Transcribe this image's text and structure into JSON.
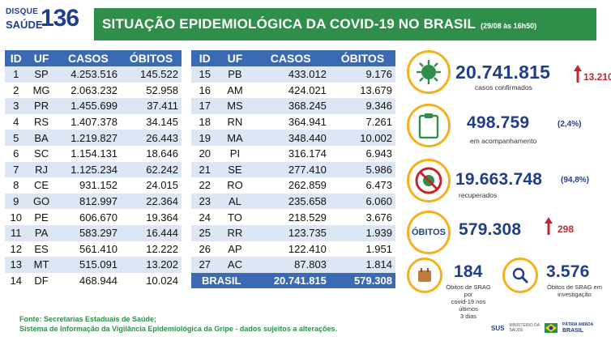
{
  "logo": {
    "line1": "DISQUE",
    "line2": "SAÚDE",
    "number": "136"
  },
  "header": {
    "title": "SITUAÇÃO EPIDEMIOLÓGICA DA COVID-19 NO BRASIL",
    "date": "(29/08 às 16h50)"
  },
  "table": {
    "columns": [
      "ID",
      "UF",
      "CASOS",
      "ÓBITOS"
    ],
    "left_rows": [
      [
        "1",
        "SP",
        "4.253.516",
        "145.522"
      ],
      [
        "2",
        "MG",
        "2.063.232",
        "52.958"
      ],
      [
        "3",
        "PR",
        "1.455.699",
        "37.411"
      ],
      [
        "4",
        "RS",
        "1.407.378",
        "34.145"
      ],
      [
        "5",
        "BA",
        "1.219.827",
        "26.443"
      ],
      [
        "6",
        "SC",
        "1.154.131",
        "18.646"
      ],
      [
        "7",
        "RJ",
        "1.125.234",
        "62.242"
      ],
      [
        "8",
        "CE",
        "931.152",
        "24.015"
      ],
      [
        "9",
        "GO",
        "812.997",
        "22.364"
      ],
      [
        "10",
        "PE",
        "606.670",
        "19.364"
      ],
      [
        "11",
        "PA",
        "583.297",
        "16.444"
      ],
      [
        "12",
        "ES",
        "561.410",
        "12.222"
      ],
      [
        "13",
        "MT",
        "515.091",
        "13.202"
      ],
      [
        "14",
        "DF",
        "468.944",
        "10.024"
      ]
    ],
    "right_rows": [
      [
        "15",
        "PB",
        "433.012",
        "9.176"
      ],
      [
        "16",
        "AM",
        "424.021",
        "13.679"
      ],
      [
        "17",
        "MS",
        "368.245",
        "9.346"
      ],
      [
        "18",
        "RN",
        "364.941",
        "7.261"
      ],
      [
        "19",
        "MA",
        "348.440",
        "10.002"
      ],
      [
        "20",
        "PI",
        "316.174",
        "6.943"
      ],
      [
        "21",
        "SE",
        "277.410",
        "5.986"
      ],
      [
        "22",
        "RO",
        "262.859",
        "6.473"
      ],
      [
        "23",
        "AL",
        "235.658",
        "6.060"
      ],
      [
        "24",
        "TO",
        "218.529",
        "3.676"
      ],
      [
        "25",
        "RR",
        "123.735",
        "1.939"
      ],
      [
        "26",
        "AP",
        "122.410",
        "1.951"
      ],
      [
        "27",
        "AC",
        "87.803",
        "1.814"
      ]
    ],
    "total": {
      "label": "BRASIL",
      "casos": "20.741.815",
      "obitos": "579.308"
    }
  },
  "stats": {
    "confirmados": {
      "value": "20.741.815",
      "label": "casos confirmados",
      "delta": "13.210",
      "icon": "virus-icon"
    },
    "acompanhamento": {
      "value": "498.759",
      "label": "em acompanhamento",
      "pct": "(2,4%)",
      "icon": "clipboard-icon"
    },
    "recuperados": {
      "value": "19.663.748",
      "label": "recuperados",
      "pct": "(94,8%)",
      "icon": "no-virus-icon"
    },
    "obitos": {
      "badge": "ÓBITOS",
      "value": "579.308",
      "delta": "298"
    },
    "srag_recent": {
      "value": "184",
      "label": "Óbitos de SRAG por covid-19 nos últimos 3 dias",
      "label1": "Óbitos de SRAG por",
      "label2": "covid-19 nos últimos",
      "label3": "3 dias",
      "icon": "calendar-icon"
    },
    "srag_invest": {
      "value": "3.576",
      "label1": "Óbitos de SRAG em",
      "label2": "investigação",
      "icon": "magnifier-icon"
    }
  },
  "footer": {
    "line1": "Fonte: Secretarias Estaduais de Saúde;",
    "line2": "Sistema de Informação da Vigilância Epidemiológica da Gripe - dados sujeitos a alterações.",
    "sus": "SUS",
    "ministry1": "MINISTÉRIO DA",
    "ministry2": "SAÚDE",
    "brasil1": "PÁTRIA AMADA",
    "brasil2": "BRASIL"
  },
  "colors": {
    "brand_green": "#2f8f4a",
    "brand_blue": "#1f3f8a",
    "table_header": "#3b6ab5",
    "accent_yellow": "#f2b11d",
    "alert_red": "#c0282f"
  }
}
